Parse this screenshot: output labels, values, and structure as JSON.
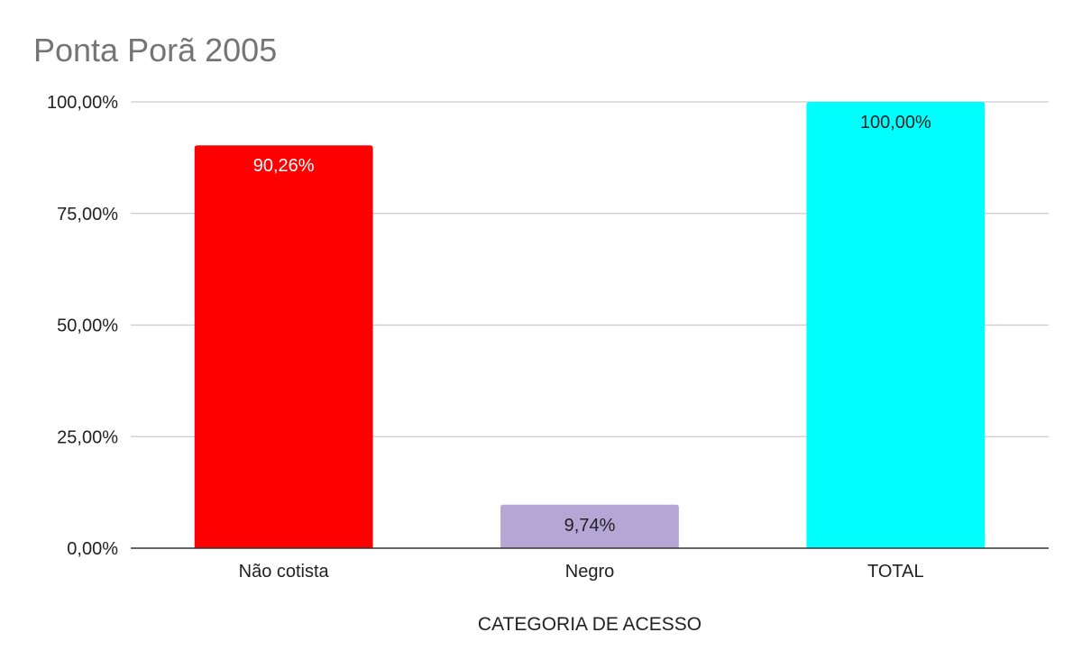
{
  "chart_data": {
    "type": "bar",
    "title": "Ponta Porã 2005",
    "xlabel": "CATEGORIA DE ACESSO",
    "ylabel": "",
    "categories": [
      "Não cotista",
      "Negro",
      "TOTAL"
    ],
    "values": [
      90.26,
      9.74,
      100.0
    ],
    "data_labels": [
      "90,26%",
      "9,74%",
      "100,00%"
    ],
    "bar_colors": [
      "#ff0000",
      "#b4a7d6",
      "#00ffff"
    ],
    "data_label_colors": [
      "#ffffff",
      "#222222",
      "#222222"
    ],
    "ylim": [
      0,
      100
    ],
    "yticks": [
      0,
      25,
      50,
      75,
      100
    ],
    "ytick_labels": [
      "0,00%",
      "25,00%",
      "50,00%",
      "75,00%",
      "100,00%"
    ],
    "grid": true,
    "legend": "none",
    "colors": {
      "title": "#757575",
      "gridline": "#cccccc",
      "axis": "#333333",
      "text": "#222222"
    }
  }
}
